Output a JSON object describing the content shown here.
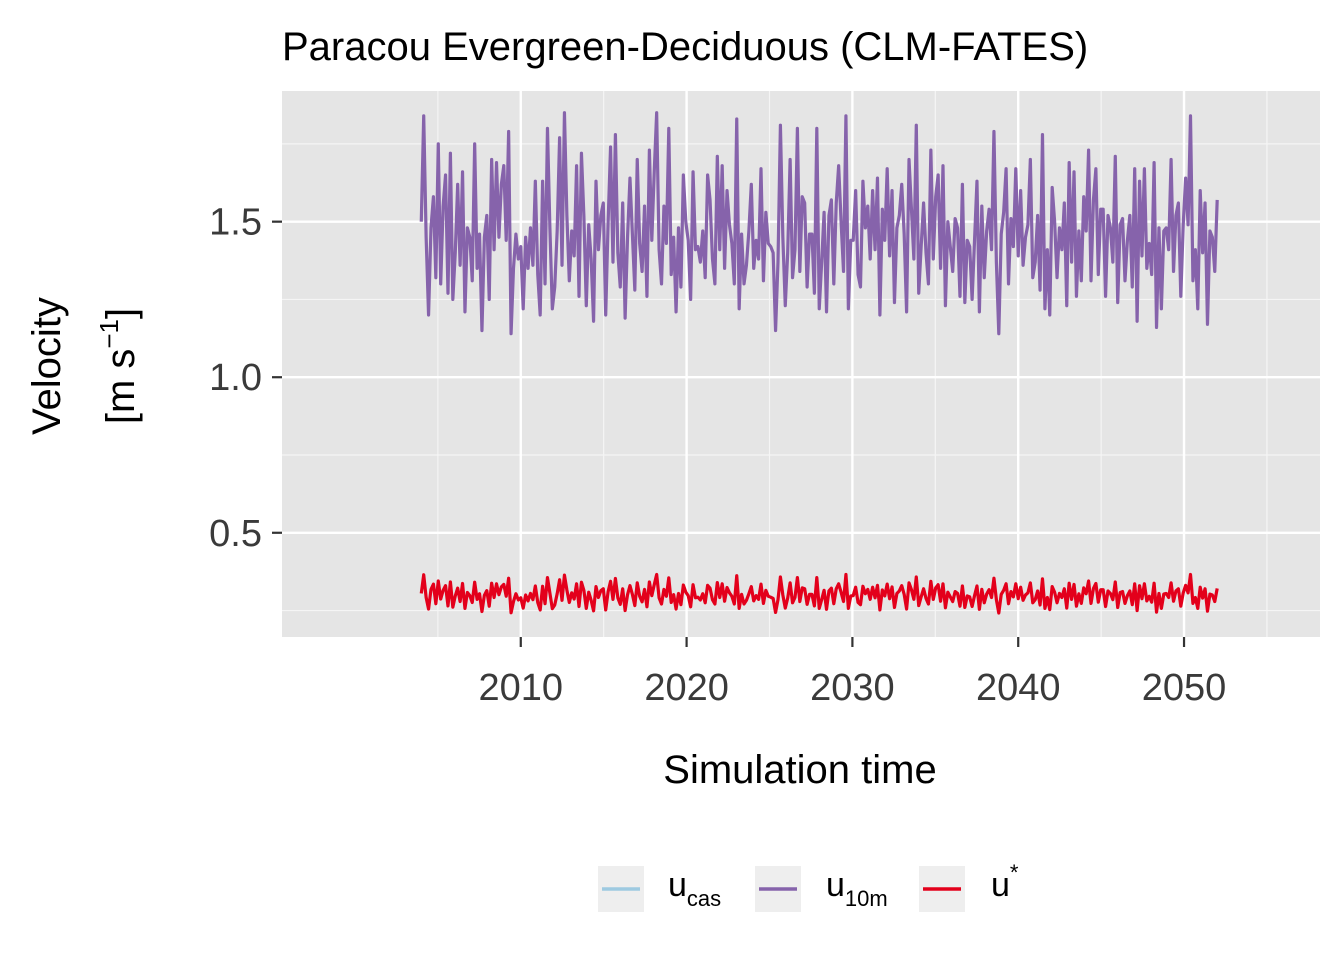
{
  "chart_data": {
    "type": "line",
    "title": "Paracou Evergreen-Deciduous (CLM-FATES)",
    "xlabel": "Simulation time",
    "ylabel_line1": "Velocity",
    "ylabel_line2": "[m s",
    "ylabel_sup": "−1",
    "ylabel_close": "]",
    "x_range": [
      2004.0,
      2052.0
    ],
    "xlim": [
      1995.6,
      2058.2
    ],
    "ylim": [
      0.165,
      1.92
    ],
    "x_ticks": [
      2010,
      2020,
      2030,
      2040,
      2050
    ],
    "x_tick_labels": [
      "2010",
      "2020",
      "2030",
      "2040",
      "2050"
    ],
    "y_ticks": [
      0.5,
      1.0,
      1.5
    ],
    "y_tick_labels": [
      "0.5",
      "1.0",
      "1.5"
    ],
    "grid": true,
    "legend_position": "bottom",
    "series": [
      {
        "name": "u",
        "subscript": "cas",
        "color": "#9ecae1",
        "values": []
      },
      {
        "name": "u",
        "subscript": "10m",
        "color": "#8663ab",
        "values": [
          1.5,
          1.84,
          1.45,
          1.2,
          1.48,
          1.58,
          1.32,
          1.75,
          1.3,
          1.55,
          1.65,
          1.27,
          1.72,
          1.25,
          1.4,
          1.62,
          1.36,
          1.66,
          1.21,
          1.48,
          1.45,
          1.31,
          1.75,
          1.35,
          1.46,
          1.15,
          1.45,
          1.52,
          1.25,
          1.7,
          1.41,
          1.69,
          1.45,
          1.62,
          1.68,
          1.44,
          1.79,
          1.14,
          1.35,
          1.46,
          1.38,
          1.42,
          1.22,
          1.45,
          1.35,
          1.48,
          1.36,
          1.63,
          1.33,
          1.2,
          1.63,
          1.3,
          1.8,
          1.48,
          1.22,
          1.29,
          1.47,
          1.77,
          1.36,
          1.85,
          1.52,
          1.31,
          1.47,
          1.39,
          1.68,
          1.26,
          1.72,
          1.52,
          1.23,
          1.49,
          1.38,
          1.18,
          1.63,
          1.41,
          1.52,
          1.56,
          1.2,
          1.5,
          1.74,
          1.37,
          1.78,
          1.4,
          1.29,
          1.56,
          1.19,
          1.45,
          1.64,
          1.46,
          1.28,
          1.7,
          1.43,
          1.34,
          1.55,
          1.26,
          1.73,
          1.44,
          1.66,
          1.85,
          1.41,
          1.3,
          1.55,
          1.43,
          1.8,
          1.33,
          1.45,
          1.21,
          1.48,
          1.29,
          1.65,
          1.5,
          1.44,
          1.25,
          1.66,
          1.41,
          1.42,
          1.37,
          1.47,
          1.32,
          1.65,
          1.57,
          1.38,
          1.3,
          1.71,
          1.41,
          1.68,
          1.35,
          1.6,
          1.49,
          1.43,
          1.3,
          1.83,
          1.22,
          1.46,
          1.3,
          1.36,
          1.47,
          1.62,
          1.35,
          1.44,
          1.38,
          1.67,
          1.31,
          1.53,
          1.43,
          1.42,
          1.4,
          1.15,
          1.37,
          1.81,
          1.45,
          1.23,
          1.4,
          1.7,
          1.32,
          1.41,
          1.8,
          1.34,
          1.58,
          1.56,
          1.29,
          1.46,
          1.46,
          1.27,
          1.8,
          1.22,
          1.37,
          1.53,
          1.21,
          1.52,
          1.57,
          1.3,
          1.56,
          1.68,
          1.5,
          1.34,
          1.84,
          1.22,
          1.44,
          1.44,
          1.6,
          1.33,
          1.29,
          1.63,
          1.48,
          1.55,
          1.38,
          1.6,
          1.41,
          1.64,
          1.2,
          1.54,
          1.44,
          1.67,
          1.39,
          1.6,
          1.24,
          1.48,
          1.52,
          1.62,
          1.46,
          1.21,
          1.7,
          1.54,
          1.38,
          1.81,
          1.27,
          1.42,
          1.56,
          1.4,
          1.3,
          1.73,
          1.38,
          1.58,
          1.65,
          1.35,
          1.68,
          1.23,
          1.5,
          1.42,
          1.34,
          1.51,
          1.48,
          1.26,
          1.62,
          1.24,
          1.44,
          1.42,
          1.25,
          1.44,
          1.63,
          1.21,
          1.55,
          1.32,
          1.47,
          1.54,
          1.41,
          1.79,
          1.37,
          1.14,
          1.46,
          1.53,
          1.67,
          1.3,
          1.51,
          1.42,
          1.67,
          1.39,
          1.6,
          1.36,
          1.45,
          1.49,
          1.7,
          1.32,
          1.37,
          1.52,
          1.28,
          1.78,
          1.22,
          1.41,
          1.2,
          1.61,
          1.5,
          1.32,
          1.48,
          1.41,
          1.56,
          1.23,
          1.69,
          1.37,
          1.66,
          1.26,
          1.47,
          1.31,
          1.58,
          1.47,
          1.73,
          1.31,
          1.57,
          1.67,
          1.33,
          1.54,
          1.54,
          1.26,
          1.52,
          1.48,
          1.37,
          1.71,
          1.24,
          1.49,
          1.51,
          1.31,
          1.44,
          1.52,
          1.29,
          1.67,
          1.18,
          1.63,
          1.39,
          1.67,
          1.35,
          1.43,
          1.33,
          1.69,
          1.16,
          1.48,
          1.22,
          1.47,
          1.48,
          1.41,
          1.7,
          1.34,
          1.52,
          1.56,
          1.26,
          1.49,
          1.64,
          1.49,
          1.84,
          1.31,
          1.41,
          1.22,
          1.6,
          1.4,
          1.56,
          1.17,
          1.47,
          1.45,
          1.34,
          1.57
        ]
      },
      {
        "name": "u",
        "superscript": "*",
        "color": "#e3001b",
        "values": [
          0.305,
          0.365,
          0.292,
          0.255,
          0.318,
          0.335,
          0.272,
          0.345,
          0.287,
          0.315,
          0.33,
          0.265,
          0.342,
          0.261,
          0.297,
          0.322,
          0.279,
          0.337,
          0.257,
          0.308,
          0.298,
          0.276,
          0.341,
          0.286,
          0.304,
          0.247,
          0.299,
          0.314,
          0.264,
          0.338,
          0.292,
          0.336,
          0.301,
          0.326,
          0.334,
          0.296,
          0.354,
          0.243,
          0.279,
          0.304,
          0.284,
          0.291,
          0.258,
          0.3,
          0.281,
          0.305,
          0.285,
          0.329,
          0.276,
          0.252,
          0.328,
          0.272,
          0.356,
          0.306,
          0.256,
          0.268,
          0.304,
          0.349,
          0.283,
          0.364,
          0.316,
          0.276,
          0.307,
          0.287,
          0.336,
          0.263,
          0.341,
          0.315,
          0.257,
          0.309,
          0.283,
          0.249,
          0.327,
          0.292,
          0.314,
          0.32,
          0.252,
          0.311,
          0.344,
          0.286,
          0.353,
          0.291,
          0.27,
          0.32,
          0.25,
          0.301,
          0.33,
          0.302,
          0.266,
          0.339,
          0.296,
          0.278,
          0.318,
          0.262,
          0.342,
          0.298,
          0.333,
          0.366,
          0.291,
          0.271,
          0.318,
          0.296,
          0.355,
          0.276,
          0.301,
          0.255,
          0.305,
          0.269,
          0.332,
          0.309,
          0.298,
          0.262,
          0.333,
          0.291,
          0.293,
          0.284,
          0.304,
          0.275,
          0.331,
          0.322,
          0.285,
          0.271,
          0.34,
          0.292,
          0.336,
          0.28,
          0.324,
          0.307,
          0.296,
          0.271,
          0.362,
          0.257,
          0.302,
          0.271,
          0.283,
          0.304,
          0.327,
          0.281,
          0.298,
          0.286,
          0.335,
          0.273,
          0.315,
          0.296,
          0.293,
          0.289,
          0.244,
          0.285,
          0.358,
          0.3,
          0.258,
          0.29,
          0.339,
          0.275,
          0.292,
          0.356,
          0.279,
          0.323,
          0.32,
          0.27,
          0.302,
          0.302,
          0.265,
          0.356,
          0.257,
          0.285,
          0.315,
          0.254,
          0.313,
          0.322,
          0.272,
          0.32,
          0.336,
          0.309,
          0.279,
          0.366,
          0.257,
          0.297,
          0.298,
          0.325,
          0.276,
          0.269,
          0.328,
          0.304,
          0.318,
          0.286,
          0.325,
          0.291,
          0.331,
          0.252,
          0.316,
          0.297,
          0.335,
          0.288,
          0.326,
          0.26,
          0.305,
          0.313,
          0.33,
          0.302,
          0.255,
          0.339,
          0.317,
          0.286,
          0.358,
          0.266,
          0.294,
          0.32,
          0.289,
          0.271,
          0.344,
          0.286,
          0.323,
          0.333,
          0.28,
          0.336,
          0.259,
          0.309,
          0.294,
          0.279,
          0.311,
          0.305,
          0.264,
          0.329,
          0.26,
          0.297,
          0.294,
          0.263,
          0.298,
          0.329,
          0.254,
          0.318,
          0.275,
          0.303,
          0.317,
          0.292,
          0.354,
          0.285,
          0.242,
          0.302,
          0.315,
          0.336,
          0.272,
          0.311,
          0.294,
          0.336,
          0.288,
          0.325,
          0.283,
          0.3,
          0.307,
          0.339,
          0.275,
          0.285,
          0.313,
          0.268,
          0.352,
          0.257,
          0.292,
          0.253,
          0.327,
          0.309,
          0.275,
          0.305,
          0.292,
          0.32,
          0.258,
          0.338,
          0.286,
          0.334,
          0.264,
          0.304,
          0.273,
          0.323,
          0.304,
          0.345,
          0.273,
          0.321,
          0.337,
          0.277,
          0.317,
          0.317,
          0.263,
          0.313,
          0.305,
          0.285,
          0.342,
          0.26,
          0.308,
          0.311,
          0.273,
          0.298,
          0.313,
          0.269,
          0.336,
          0.25,
          0.33,
          0.288,
          0.336,
          0.281,
          0.296,
          0.277,
          0.338,
          0.245,
          0.305,
          0.257,
          0.303,
          0.305,
          0.292,
          0.339,
          0.28,
          0.313,
          0.32,
          0.264,
          0.307,
          0.331,
          0.307,
          0.366,
          0.273,
          0.292,
          0.257,
          0.325,
          0.29,
          0.32,
          0.248,
          0.303,
          0.3,
          0.279,
          0.321
        ]
      }
    ]
  }
}
